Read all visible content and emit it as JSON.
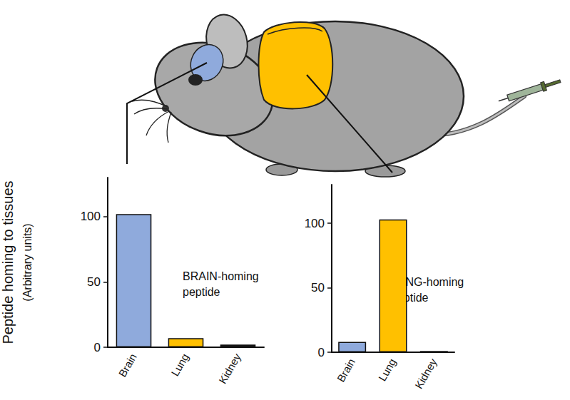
{
  "chart_data": [
    {
      "type": "bar",
      "categories": [
        "Brain",
        "Lung",
        "Kidney"
      ],
      "values": [
        102,
        7,
        2
      ],
      "colors": [
        "#8faadc",
        "#ffc000",
        "#1a1a1a"
      ],
      "ylim": [
        0,
        130
      ],
      "yticks": [
        0,
        50,
        100
      ],
      "ylabel": "Peptide homing to tissues\n(Arbitrary units)",
      "annotation": "BRAIN-homing peptide",
      "grid": false
    },
    {
      "type": "bar",
      "categories": [
        "Brain",
        "Lung",
        "Kidney"
      ],
      "values": [
        8,
        103,
        1
      ],
      "colors": [
        "#8faadc",
        "#ffc000",
        "#2f4a7a"
      ],
      "ylim": [
        0,
        130
      ],
      "yticks": [
        0,
        50,
        100
      ],
      "annotation": "LUNG-homing peptide",
      "grid": false
    }
  ]
}
